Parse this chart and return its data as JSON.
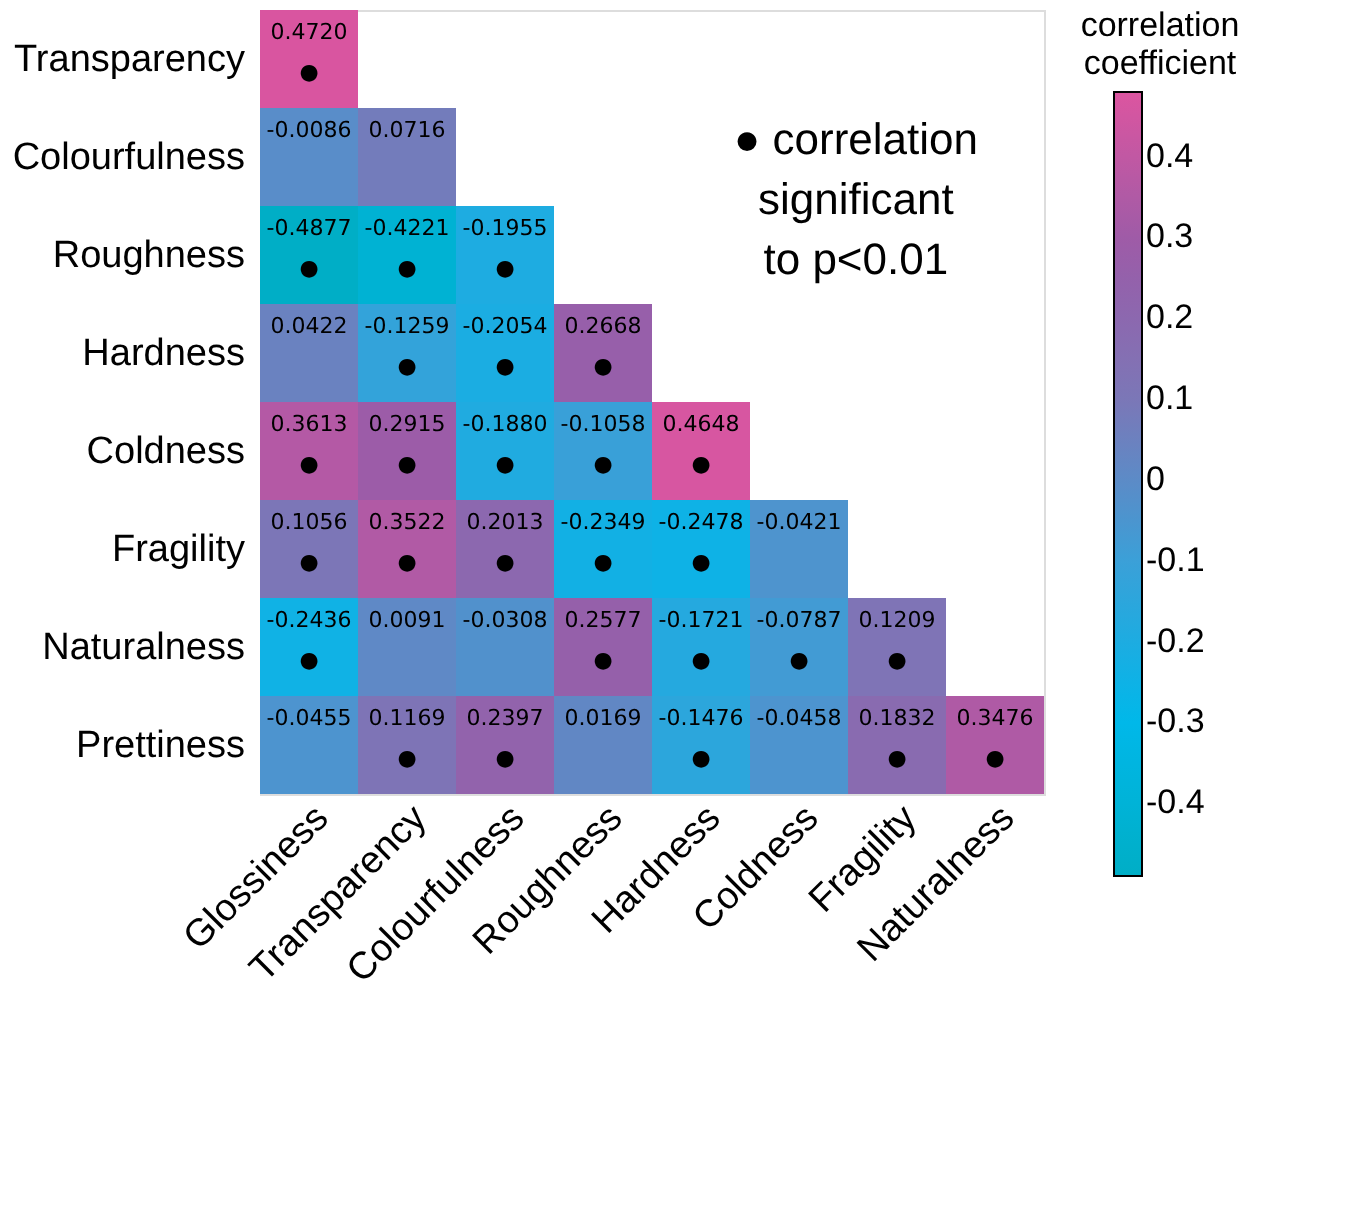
{
  "chart_data": {
    "type": "heatmap",
    "legend_title": "correlation coefficient",
    "categories": [
      "Glossiness",
      "Transparency",
      "Colourfulness",
      "Roughness",
      "Hardness",
      "Coldness",
      "Fragility",
      "Naturalness"
    ],
    "y_categories": [
      "Transparency",
      "Colourfulness",
      "Roughness",
      "Hardness",
      "Coldness",
      "Fragility",
      "Naturalness",
      "Prettiness"
    ],
    "cells": [
      [
        0.472,
        null,
        null,
        null,
        null,
        null,
        null,
        null
      ],
      [
        -0.0086,
        0.0716,
        null,
        null,
        null,
        null,
        null,
        null
      ],
      [
        -0.4877,
        -0.4221,
        -0.1955,
        null,
        null,
        null,
        null,
        null
      ],
      [
        0.0422,
        -0.1259,
        -0.2054,
        0.2668,
        null,
        null,
        null,
        null
      ],
      [
        0.3613,
        0.2915,
        -0.188,
        -0.1058,
        0.4648,
        null,
        null,
        null
      ],
      [
        0.1056,
        0.3522,
        0.2013,
        -0.2349,
        -0.2478,
        -0.0421,
        null,
        null
      ],
      [
        -0.2436,
        0.0091,
        -0.0308,
        0.2577,
        -0.1721,
        -0.0787,
        0.1209,
        null
      ],
      [
        -0.0455,
        0.1169,
        0.2397,
        0.0169,
        -0.1476,
        -0.0458,
        0.1832,
        0.3476
      ]
    ],
    "cell_labels": [
      [
        "0.4720\n●",
        null,
        null,
        null,
        null,
        null,
        null,
        null
      ],
      [
        "-0.0086",
        "0.0716",
        null,
        null,
        null,
        null,
        null,
        null
      ],
      [
        "-0.4877\n●",
        "-0.4221\n●",
        "-0.1955\n●",
        null,
        null,
        null,
        null,
        null
      ],
      [
        "0.0422",
        "-0.1259\n●",
        "-0.2054\n●",
        "0.2668\n●",
        null,
        null,
        null,
        null
      ],
      [
        "0.3613\n●",
        "0.2915\n●",
        "-0.1880\n●",
        "-0.1058\n●",
        "0.4648\n●",
        null,
        null,
        null
      ],
      [
        "0.1056\n●",
        "0.3522\n●",
        "0.2013\n●",
        "-0.2349\n●",
        "-0.2478\n●",
        "-0.0421",
        null,
        null
      ],
      [
        "-0.2436\n●",
        "0.0091",
        "-0.0308",
        "0.2577\n●",
        "-0.1721\n●",
        "-0.0787\n●",
        "0.1209\n●",
        null
      ],
      [
        "-0.0455",
        "0.1169\n●",
        "0.2397\n●",
        "0.0169",
        "-0.1476\n●",
        "-0.0458",
        "0.1832\n●",
        "0.3476\n●"
      ]
    ],
    "data_labels": true,
    "clim": [
      -0.49,
      0.48
    ],
    "cticks": [
      -0.4,
      -0.3,
      -0.2,
      -0.1,
      0,
      0.1,
      0.2,
      0.3,
      0.4
    ],
    "annotations": [
      "● correlation significant to p<0.01"
    ],
    "grid": false
  }
}
